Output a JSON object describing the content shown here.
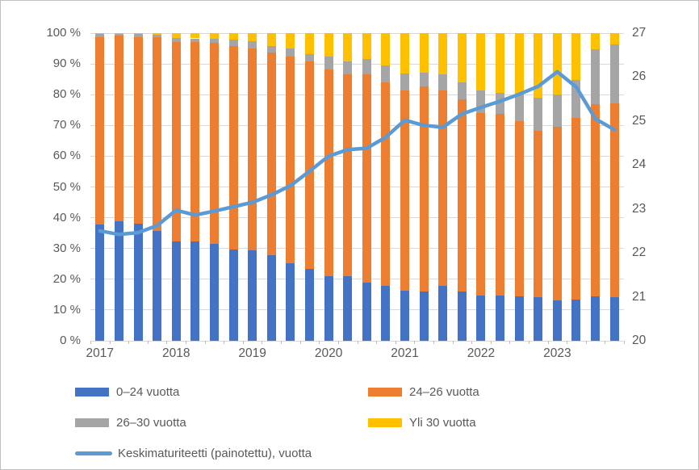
{
  "chart_data": {
    "type": "bar",
    "subtype": "stacked-100-percent-with-secondary-line",
    "title": "",
    "xlabel": "",
    "ylabel_left": "",
    "ylabel_right": "",
    "grid": "horizontal",
    "legend_position": "bottom",
    "categories": [
      "2017 Q1",
      "2017 Q2",
      "2017 Q3",
      "2017 Q4",
      "2018 Q1",
      "2018 Q2",
      "2018 Q3",
      "2018 Q4",
      "2019 Q1",
      "2019 Q2",
      "2019 Q3",
      "2019 Q4",
      "2020 Q1",
      "2020 Q2",
      "2020 Q3",
      "2020 Q4",
      "2021 Q1",
      "2021 Q2",
      "2021 Q3",
      "2021 Q4",
      "2022 Q1",
      "2022 Q2",
      "2022 Q3",
      "2022 Q4",
      "2023 Q1",
      "2023 Q2",
      "2023 Q3",
      "2023 Q4"
    ],
    "series": [
      {
        "name": "0–24 vuotta",
        "type": "bar",
        "axis": "left",
        "unit": "%",
        "color": "#4472C4",
        "values": [
          37.8,
          38.8,
          38.0,
          35.8,
          32.4,
          32.4,
          31.5,
          29.7,
          29.3,
          27.9,
          25.3,
          23.3,
          21.0,
          20.9,
          19.0,
          17.8,
          16.2,
          16.1,
          17.8,
          16.0,
          14.8,
          14.7,
          14.4,
          14.1,
          13.2,
          13.4,
          14.4,
          14.2
        ]
      },
      {
        "name": "24–26 vuotta",
        "type": "bar",
        "axis": "left",
        "unit": "%",
        "color": "#ED7D31",
        "values": [
          61.0,
          60.4,
          60.7,
          62.8,
          64.8,
          64.6,
          65.3,
          66.2,
          65.7,
          65.9,
          67.1,
          67.4,
          67.3,
          65.7,
          67.6,
          66.1,
          65.1,
          66.7,
          63.5,
          62.4,
          59.1,
          59.0,
          57.1,
          54.1,
          56.4,
          59.1,
          62.5,
          63.1
        ]
      },
      {
        "name": "26–30 vuotta",
        "type": "bar",
        "axis": "left",
        "unit": "%",
        "color": "#A5A5A5",
        "values": [
          0.9,
          0.6,
          1.1,
          0.9,
          1.1,
          1.3,
          1.4,
          2.1,
          2.3,
          2.1,
          2.6,
          2.4,
          4.1,
          4.3,
          4.9,
          5.5,
          5.7,
          4.4,
          5.3,
          5.5,
          7.6,
          6.8,
          8.5,
          10.8,
          10.4,
          12.2,
          17.9,
          19.1
        ]
      },
      {
        "name": "Yli 30 vuotta",
        "type": "bar",
        "axis": "left",
        "unit": "%",
        "color": "#FFC000",
        "values": [
          0.3,
          0.2,
          0.2,
          0.5,
          1.7,
          1.7,
          1.8,
          2.0,
          2.7,
          4.1,
          5.0,
          6.9,
          7.6,
          9.1,
          8.5,
          10.6,
          13.0,
          12.8,
          13.4,
          16.1,
          18.5,
          19.5,
          20.0,
          21.0,
          20.0,
          15.3,
          5.2,
          3.6
        ]
      },
      {
        "name": "Keskimaturiteetti (painotettu), vuotta",
        "type": "line",
        "axis": "right",
        "unit": "vuotta",
        "color": "#5B9BD5",
        "values": [
          22.5,
          22.42,
          22.46,
          22.62,
          22.97,
          22.86,
          22.95,
          23.05,
          23.15,
          23.32,
          23.53,
          23.86,
          24.2,
          24.35,
          24.38,
          24.63,
          25.02,
          24.9,
          24.86,
          25.16,
          25.31,
          25.45,
          25.61,
          25.79,
          26.12,
          25.77,
          25.05,
          24.8
        ]
      }
    ],
    "left_axis": {
      "min": 0,
      "max": 100,
      "step": 10,
      "labels": [
        "0 %",
        "10 %",
        "20 %",
        "30 %",
        "40 %",
        "50 %",
        "60 %",
        "70 %",
        "80 %",
        "90 %",
        "100 %"
      ]
    },
    "right_axis": {
      "min": 20,
      "max": 27,
      "step": 1,
      "labels": [
        "20",
        "21",
        "22",
        "23",
        "24",
        "25",
        "26",
        "27"
      ]
    },
    "x_axis": {
      "year_labels": [
        {
          "label": "2017",
          "index": 0
        },
        {
          "label": "2018",
          "index": 4
        },
        {
          "label": "2019",
          "index": 8
        },
        {
          "label": "2020",
          "index": 12
        },
        {
          "label": "2021",
          "index": 16
        },
        {
          "label": "2022",
          "index": 20
        },
        {
          "label": "2023",
          "index": 24
        }
      ]
    },
    "colors": {
      "gridline": "#D9D9D9",
      "axis_line": "#BFBFBF",
      "axis_text": "#595959",
      "background": "#FFFFFF",
      "border": "#BFBFBF"
    }
  }
}
